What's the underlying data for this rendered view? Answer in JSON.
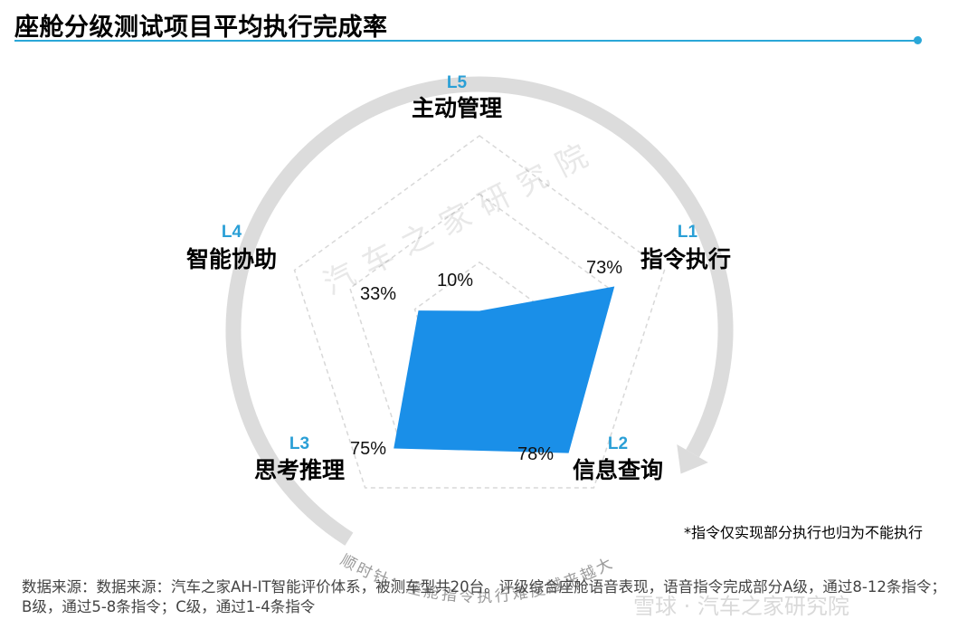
{
  "page": {
    "title": "座舱分级测试项目平均执行完成率",
    "footnote": "*指令仅实现部分执行也归为不能执行",
    "source": "数据来源：数据来源：汽车之家AH-IT智能评价体系，被测车型共20台。评级综合座舱语音表现，语音指令完成部分A级，通过8-12条指令；B级，通过5-8条指令；C级，通过1-4条指令",
    "watermark_center": "汽车之家研究院",
    "watermark_bottom": "雪球 · 汽车之家研究院",
    "arrow_caption": "顺时针：座舱指令执行难度越来越大"
  },
  "colors": {
    "accent": "#2aa7d8",
    "fill": "#1a8fe8",
    "level_label": "#2a9fd6",
    "grid": "#d8d8d8",
    "arrow": "#dcdcdc"
  },
  "chart_data": {
    "type": "radar",
    "title": "座舱分级测试项目平均执行完成率",
    "axes": [
      {
        "level": "L5",
        "name": "主动管理",
        "value_label": "10%",
        "value": 10
      },
      {
        "level": "L1",
        "name": "指令执行",
        "value_label": "73%",
        "value": 73
      },
      {
        "level": "L2",
        "name": "信息查询",
        "value_label": "78%",
        "value": 78
      },
      {
        "level": "L3",
        "name": "思考推理",
        "value_label": "75%",
        "value": 75
      },
      {
        "level": "L4",
        "name": "智能协助",
        "value_label": "33%",
        "value": 33
      }
    ],
    "range": [
      0,
      100
    ],
    "grid": true
  }
}
